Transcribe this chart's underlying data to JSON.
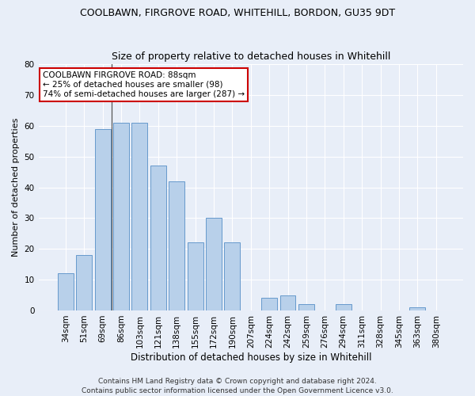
{
  "title": "COOLBAWN, FIRGROVE ROAD, WHITEHILL, BORDON, GU35 9DT",
  "subtitle": "Size of property relative to detached houses in Whitehill",
  "xlabel": "Distribution of detached houses by size in Whitehill",
  "ylabel": "Number of detached properties",
  "categories": [
    "34sqm",
    "51sqm",
    "69sqm",
    "86sqm",
    "103sqm",
    "121sqm",
    "138sqm",
    "155sqm",
    "172sqm",
    "190sqm",
    "207sqm",
    "224sqm",
    "242sqm",
    "259sqm",
    "276sqm",
    "294sqm",
    "311sqm",
    "328sqm",
    "345sqm",
    "363sqm",
    "380sqm"
  ],
  "values": [
    12,
    18,
    59,
    61,
    61,
    47,
    42,
    22,
    30,
    22,
    0,
    4,
    5,
    2,
    0,
    2,
    0,
    0,
    0,
    1,
    0
  ],
  "bar_color": "#b8d0ea",
  "bar_edge_color": "#6699cc",
  "annotation_box_text": "COOLBAWN FIRGROVE ROAD: 88sqm\n← 25% of detached houses are smaller (98)\n74% of semi-detached houses are larger (287) →",
  "annotation_box_facecolor": "#ffffff",
  "annotation_box_edgecolor": "#cc0000",
  "vline_index": 3,
  "ylim": [
    0,
    80
  ],
  "yticks": [
    0,
    10,
    20,
    30,
    40,
    50,
    60,
    70,
    80
  ],
  "footer_line1": "Contains HM Land Registry data © Crown copyright and database right 2024.",
  "footer_line2": "Contains public sector information licensed under the Open Government Licence v3.0.",
  "bg_color": "#e8eef8",
  "plot_bg_color": "#e8eef8",
  "grid_color": "#ffffff",
  "title_fontsize": 9,
  "subtitle_fontsize": 9,
  "xlabel_fontsize": 8.5,
  "ylabel_fontsize": 8,
  "tick_fontsize": 7.5,
  "annotation_fontsize": 7.5,
  "footer_fontsize": 6.5
}
